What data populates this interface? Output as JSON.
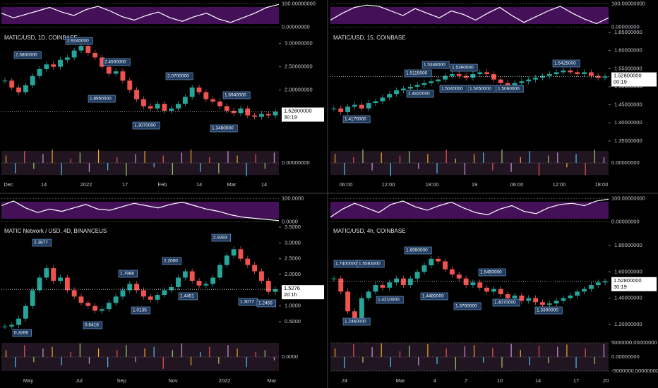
{
  "panels": [
    {
      "title": "MATIC/USD, 1D, COINBASE",
      "ylim": [
        0.82,
        3.27
      ],
      "price_ticks": [
        {
          "value": 3,
          "label": "3.00000000"
        },
        {
          "value": 2.5,
          "label": "2.50000000"
        },
        {
          "value": 2,
          "label": "2.00000000"
        }
      ],
      "price_tag": {
        "value": 1.528,
        "label": "1.52800000"
      },
      "countdown": "30:19",
      "closes": [
        2.2,
        2.05,
        1.95,
        2.1,
        2.3,
        2.45,
        2.55,
        2.5,
        2.65,
        2.7,
        2.85,
        2.95,
        2.8,
        2.7,
        2.5,
        2.35,
        2.4,
        2.2,
        2.0,
        1.8,
        1.65,
        1.6,
        1.7,
        1.55,
        1.6,
        1.7,
        1.85,
        2.05,
        1.95,
        1.8,
        1.75,
        1.65,
        1.55,
        1.5,
        1.6,
        1.45,
        1.42,
        1.48,
        1.45,
        1.53
      ],
      "annotations": [
        "2.5800000",
        "2.9240000",
        "2.4500000",
        "1.8950000",
        "2.0700000",
        "1.6940000",
        "1.3070000",
        "1.3480000"
      ],
      "time_labels": [
        "Dec",
        "14",
        "2022",
        "17",
        "Feb",
        "14",
        "Mar",
        "14"
      ],
      "osc_lim": [
        -5,
        105
      ],
      "osc_ticks": [
        {
          "value": 100,
          "label": "100.00000000"
        },
        {
          "value": 0,
          "label": "0.00000000"
        }
      ],
      "osc": [
        60,
        40,
        55,
        70,
        85,
        65,
        50,
        75,
        90,
        70,
        45,
        30,
        50,
        65,
        40,
        25,
        45,
        60,
        35,
        20,
        40,
        60,
        85,
        98
      ],
      "low_lim": [
        -1,
        1
      ],
      "low_ticks": [
        {
          "value": 0,
          "label": "0.00000000"
        }
      ],
      "low": [
        0.5,
        -0.7,
        0.8,
        -0.4,
        0.6,
        0.9,
        -0.8,
        0.3,
        0.7,
        -0.6,
        0.9,
        -0.5,
        0.4,
        -0.9,
        0.6,
        0.8,
        -0.3,
        0.5,
        -0.8,
        0.7,
        0.9,
        -0.6,
        0.4,
        -0.7,
        0.8,
        0.5,
        -0.9,
        0.6,
        -0.4,
        0.7
      ]
    },
    {
      "title": "MATIC/USD, 15, COINBASE",
      "ylim": [
        1.34,
        1.654
      ],
      "price_ticks": [
        {
          "value": 1.65,
          "label": "1.65000000"
        },
        {
          "value": 1.6,
          "label": "1.60000000"
        },
        {
          "value": 1.55,
          "label": "1.55000000"
        },
        {
          "value": 1.5,
          "label": "1.50000000"
        },
        {
          "value": 1.45,
          "label": "1.45000000"
        },
        {
          "value": 1.4,
          "label": "1.40000000"
        },
        {
          "value": 1.35,
          "label": "1.35000000"
        }
      ],
      "price_tag": {
        "value": 1.528,
        "label": "1.52800000"
      },
      "countdown": "00:19",
      "closes": [
        1.44,
        1.43,
        1.445,
        1.45,
        1.44,
        1.455,
        1.46,
        1.47,
        1.48,
        1.49,
        1.495,
        1.5,
        1.505,
        1.51,
        1.515,
        1.52,
        1.53,
        1.535,
        1.53,
        1.525,
        1.535,
        1.54,
        1.535,
        1.52,
        1.51,
        1.505,
        1.51,
        1.515,
        1.52,
        1.525,
        1.53,
        1.535,
        1.54,
        1.545,
        1.54,
        1.535,
        1.54,
        1.53,
        1.525,
        1.528
      ],
      "annotations": [
        "1.5115000",
        "1.5348000",
        "1.5390000",
        "1.5425000",
        "1.4820000",
        "1.5040000",
        "1.5050000",
        "1.5060000",
        "1.4170000"
      ],
      "time_labels": [
        "06:00",
        "12:00",
        "18:00",
        "19",
        "06:00",
        "12:00",
        "18:00"
      ],
      "osc_lim": [
        -5,
        105
      ],
      "osc_ticks": [
        {
          "value": 100,
          "label": "100.00000000"
        },
        {
          "value": 0,
          "label": "0.00000000"
        }
      ],
      "osc": [
        30,
        60,
        85,
        95,
        90,
        70,
        50,
        80,
        60,
        40,
        70,
        55,
        30,
        60,
        85,
        50,
        20,
        45,
        70,
        90,
        60,
        35,
        15,
        40
      ],
      "low_lim": [
        -1,
        1
      ],
      "low_ticks": [
        {
          "value": 0,
          "label": "0.00000000"
        }
      ],
      "low": [
        0.6,
        -0.8,
        0.4,
        0.9,
        -0.5,
        0.7,
        -0.9,
        0.5,
        0.8,
        -0.4,
        0.6,
        -0.7,
        0.9,
        0.3,
        -0.8,
        0.6,
        0.7,
        -0.5,
        0.9,
        -0.6,
        0.4,
        0.8,
        -0.9,
        0.5,
        0.7,
        -0.3,
        0.6,
        -0.8,
        0.9,
        0.4
      ]
    },
    {
      "title": "MATIC Network / USD, 4D, BINANCEUS",
      "ylim": [
        0.01,
        3.59
      ],
      "price_ticks": [
        {
          "value": 3.5,
          "label": "3.5000"
        },
        {
          "value": 3,
          "label": "3.0000"
        },
        {
          "value": 2.5,
          "label": "2.5000"
        },
        {
          "value": 2,
          "label": "2.0000"
        },
        {
          "value": 1,
          "label": "1.0000"
        },
        {
          "value": 0.5,
          "label": "0.5000"
        }
      ],
      "price_tag": {
        "value": 1.5276,
        "label": "1.5276"
      },
      "countdown": "2d 1h",
      "closes": [
        0.35,
        0.4,
        0.6,
        1.0,
        1.5,
        1.9,
        2.2,
        1.8,
        1.9,
        1.5,
        1.3,
        1.1,
        1.0,
        0.85,
        0.9,
        1.1,
        1.3,
        1.5,
        1.7,
        1.5,
        1.3,
        1.2,
        1.35,
        1.5,
        1.6,
        1.9,
        2.1,
        1.8,
        1.65,
        1.7,
        1.9,
        2.3,
        2.6,
        2.8,
        2.5,
        2.3,
        2.1,
        1.8,
        1.45,
        1.53
      ],
      "annotations": [
        "2.3877",
        "1.7988",
        "2.2000",
        "2.9283",
        "1.0135",
        "0.6418",
        "1.4451",
        "1.3077",
        "0.3269",
        "1.2459"
      ],
      "time_labels": [
        "May",
        "Jul",
        "Sep",
        "Nov",
        "2022",
        "Mar"
      ],
      "osc_lim": [
        -5,
        105
      ],
      "osc_ticks": [
        {
          "value": 100,
          "label": "100.0000"
        },
        {
          "value": 0,
          "label": "0.0000"
        }
      ],
      "osc": [
        70,
        90,
        60,
        40,
        55,
        45,
        60,
        75,
        55,
        50,
        65,
        80,
        70,
        60,
        75,
        85,
        70,
        55,
        45,
        30,
        20,
        15,
        10,
        5
      ],
      "low_lim": [
        -1,
        1
      ],
      "low_ticks": [
        {
          "value": 0,
          "label": "0.0000"
        }
      ],
      "low": [
        0.4,
        -0.6,
        0.7,
        -0.3,
        0.5,
        0.6,
        -0.5,
        0.3,
        0.8,
        -0.4,
        0.5,
        -0.6,
        0.4,
        0.7,
        -0.3,
        0.5,
        0.6,
        -0.7,
        0.4,
        0.8,
        -0.5,
        0.3,
        0.6,
        -0.4,
        0.7,
        0.5,
        -0.6,
        0.3,
        0.4,
        -0.2
      ]
    },
    {
      "title": "MATIC/USD, 4h, COINBASE",
      "ylim": [
        1.103,
        1.962
      ],
      "price_ticks": [
        {
          "value": 1.8,
          "label": "1.80000000"
        },
        {
          "value": 1.6,
          "label": "1.60000000"
        },
        {
          "value": 1.4,
          "label": "1.40000000"
        },
        {
          "value": 1.2,
          "label": "1.20000000"
        }
      ],
      "price_tag": {
        "value": 1.528,
        "label": "1.52800000"
      },
      "countdown": "30:19",
      "closes": [
        1.55,
        1.45,
        1.3,
        1.25,
        1.4,
        1.45,
        1.5,
        1.48,
        1.52,
        1.55,
        1.5,
        1.55,
        1.6,
        1.65,
        1.7,
        1.68,
        1.62,
        1.58,
        1.55,
        1.5,
        1.52,
        1.48,
        1.45,
        1.47,
        1.43,
        1.4,
        1.42,
        1.38,
        1.4,
        1.37,
        1.35,
        1.36,
        1.38,
        1.4,
        1.42,
        1.45,
        1.47,
        1.5,
        1.52,
        1.528
      ],
      "annotations": [
        "1.7400000",
        "1.5563000",
        "1.6990000",
        "1.5450000",
        "1.4210000",
        "1.4480000",
        "1.3760000",
        "1.4070000",
        "1.3300000",
        "1.2460000"
      ],
      "time_labels": [
        "24",
        "Mar",
        "4",
        "7",
        "10",
        "14",
        "17",
        "20"
      ],
      "osc_lim": [
        -5,
        105
      ],
      "osc_ticks": [
        {
          "value": 100,
          "label": "100.00000000"
        },
        {
          "value": 0,
          "label": "0.00000000"
        }
      ],
      "osc": [
        20,
        55,
        80,
        60,
        40,
        75,
        90,
        65,
        50,
        70,
        85,
        60,
        40,
        30,
        55,
        70,
        45,
        35,
        60,
        75,
        80,
        70,
        90,
        98
      ],
      "low_lim": [
        -6000000,
        6000000
      ],
      "low_ticks": [
        {
          "value": 5000000,
          "label": "5000000.00000000"
        },
        {
          "value": 0,
          "label": "0.00000000"
        },
        {
          "value": -5000000,
          "label": "-5000000.00000000"
        }
      ],
      "low": [
        3000000,
        -4000000,
        4500000,
        -2000000,
        3500000,
        4800000,
        -3500000,
        2000000,
        4000000,
        -3000000,
        4500000,
        -2500000,
        3000000,
        -4500000,
        3800000,
        4200000,
        -2000000,
        3200000,
        -3800000,
        4600000,
        2500000,
        -3000000,
        4000000,
        -2200000,
        3600000,
        4400000,
        -4000000,
        3000000,
        -2500000,
        4500000
      ]
    }
  ]
}
